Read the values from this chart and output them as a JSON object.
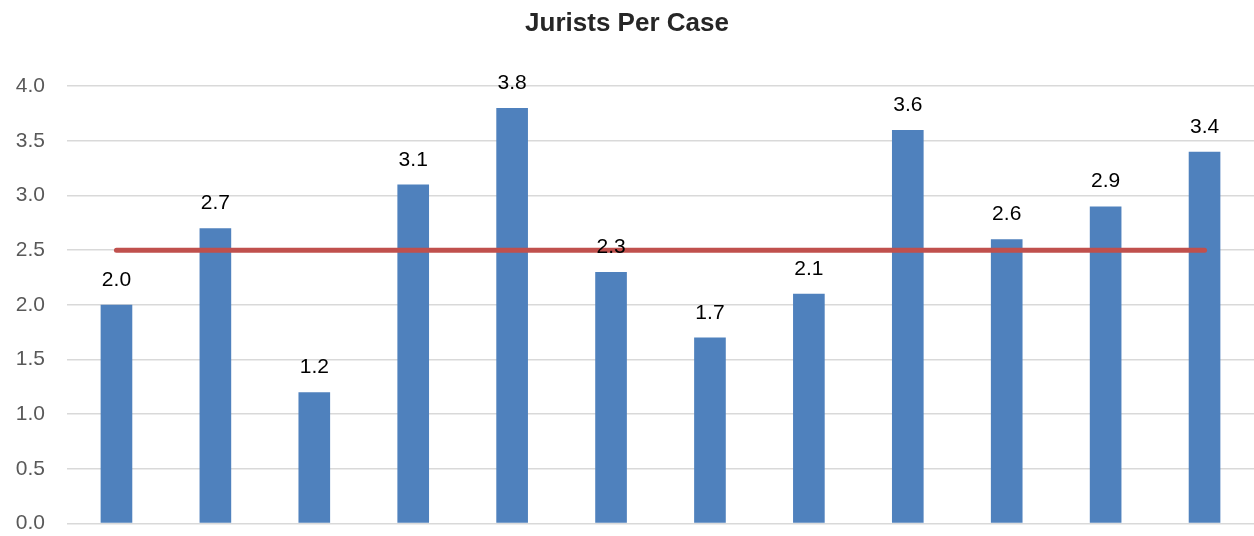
{
  "chart_data": {
    "type": "bar",
    "title": "Jurists Per Case",
    "categories": [
      null,
      null,
      null,
      null,
      null,
      null,
      null,
      null,
      null,
      null,
      null,
      null
    ],
    "series": [
      {
        "type": "bar",
        "color": "#4f81bd",
        "values": [
          2.0,
          2.7,
          1.2,
          3.1,
          3.8,
          2.3,
          1.7,
          2.1,
          3.6,
          2.6,
          2.9,
          3.4
        ],
        "value_labels": [
          "2.0",
          "2.7",
          "1.2",
          "3.1",
          "3.8",
          "2.3",
          "1.7",
          "2.1",
          "3.6",
          "2.6",
          "2.9",
          "3.4"
        ]
      },
      {
        "type": "line",
        "color": "#c0504d",
        "values": [
          2.5,
          2.5,
          2.5,
          2.5,
          2.5,
          2.5,
          2.5,
          2.5,
          2.5,
          2.5,
          2.5,
          2.5
        ]
      }
    ],
    "ylim": [
      0,
      4
    ],
    "yticks": [
      {
        "value": 0,
        "label": "0.0"
      },
      0.5,
      {
        "value": 1,
        "label": "1.0"
      },
      1.5,
      {
        "value": 2,
        "label": "2.0"
      },
      2.5,
      {
        "value": 3,
        "label": "3.0"
      },
      3.5,
      {
        "value": 4,
        "label": "4.0"
      }
    ],
    "grid": "y",
    "tick_labels": "y",
    "marker": "none"
  }
}
